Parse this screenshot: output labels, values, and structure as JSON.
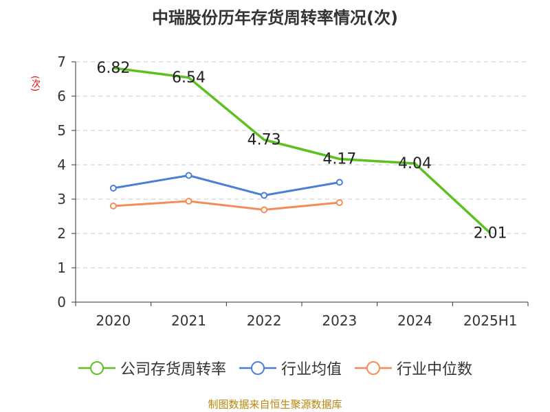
{
  "chart_data": {
    "type": "line",
    "title": "中瑞股份历年存货周转率情况(次)",
    "ylabel": "(次)",
    "xlabel": "",
    "categories": [
      "2020",
      "2021",
      "2022",
      "2023",
      "2024",
      "2025H1"
    ],
    "yticks": [
      "0",
      "1",
      "2",
      "3",
      "4",
      "5",
      "6",
      "7"
    ],
    "ylim": [
      0,
      7
    ],
    "grid": true,
    "legend_position": "bottom",
    "series": [
      {
        "name": "公司存货周转率",
        "color": "#5cc01f",
        "values": [
          6.82,
          6.54,
          4.73,
          4.17,
          4.04,
          2.01
        ],
        "labels": [
          "6.82",
          "6.54",
          "4.73",
          "4.17",
          "4.04",
          "2.01"
        ]
      },
      {
        "name": "行业均值",
        "color": "#4a7fd8",
        "values": [
          3.32,
          3.69,
          3.11,
          3.49,
          null,
          null
        ],
        "labels": []
      },
      {
        "name": "行业中位数",
        "color": "#f58b59",
        "values": [
          2.8,
          2.94,
          2.69,
          2.9,
          null,
          null
        ],
        "labels": []
      }
    ]
  },
  "source": "制图数据来自恒生聚源数据库"
}
